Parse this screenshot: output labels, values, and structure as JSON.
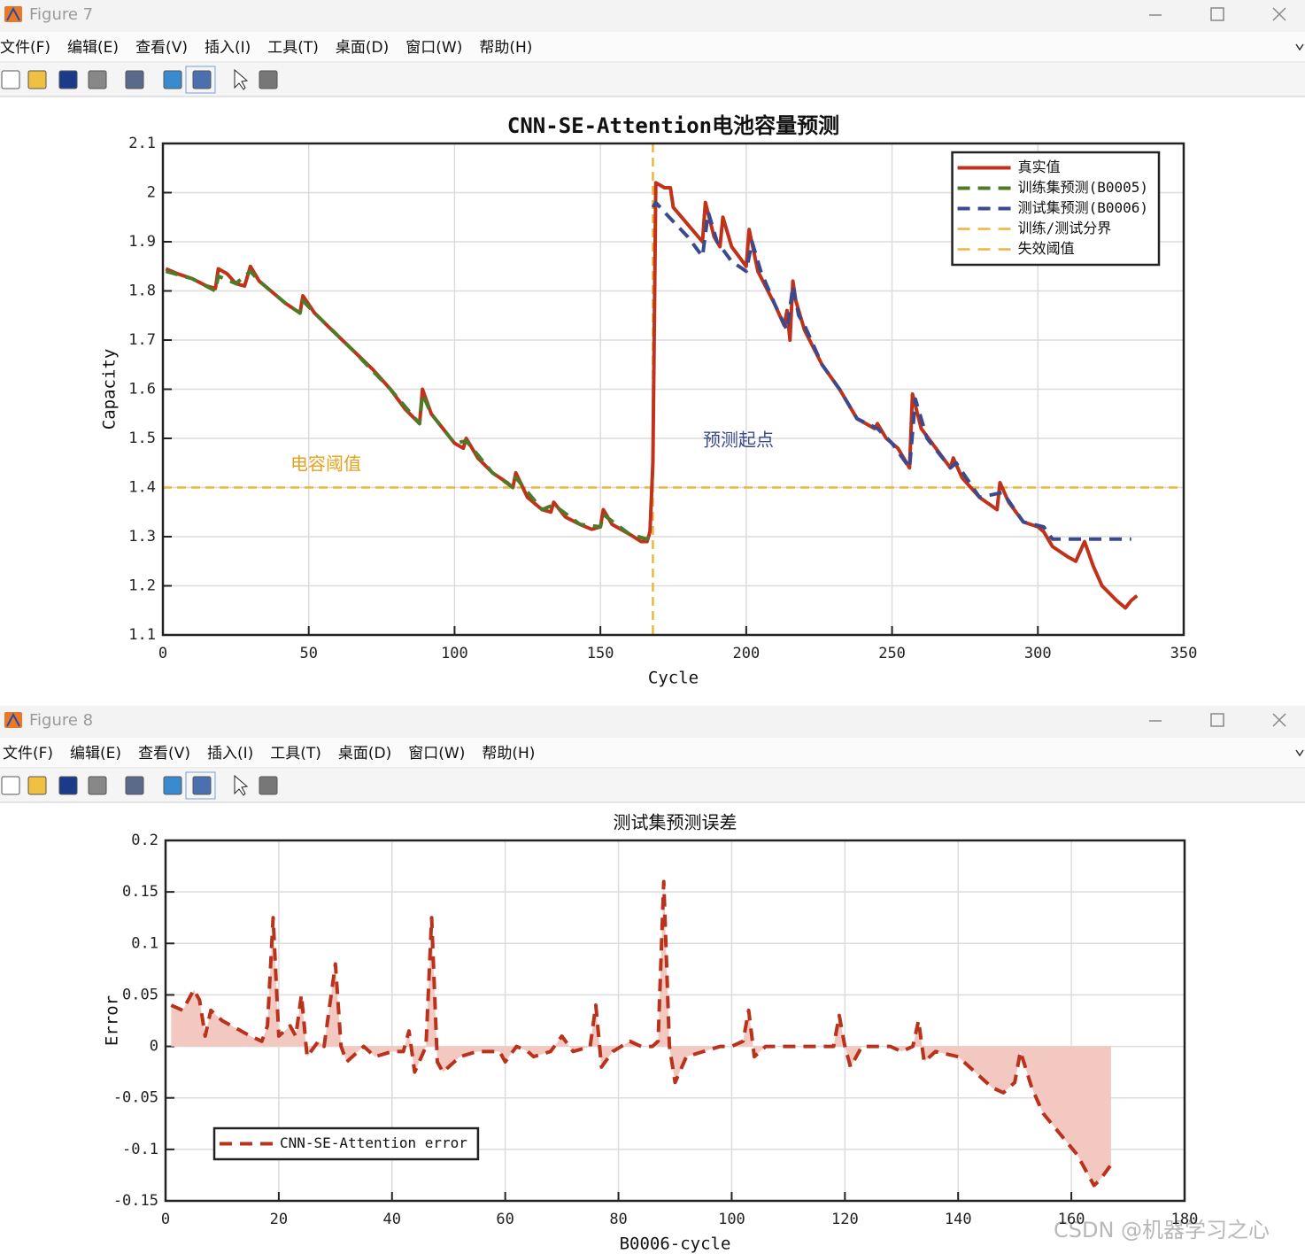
{
  "windows": [
    {
      "title": "Figure 7",
      "menu": [
        "文件(F)",
        "编辑(E)",
        "查看(V)",
        "插入(I)",
        "工具(T)",
        "桌面(D)",
        "窗口(W)",
        "帮助(H)"
      ]
    },
    {
      "title": "Figure 8",
      "menu": [
        "文件(F)",
        "编辑(E)",
        "查看(V)",
        "插入(I)",
        "工具(T)",
        "桌面(D)",
        "窗口(W)",
        "帮助(H)"
      ]
    }
  ],
  "watermark": "CSDN @机器学习之心",
  "chart_data": [
    {
      "type": "line",
      "title": "CNN-SE-Attention电池容量预测",
      "xlabel": "Cycle",
      "ylabel": "Capacity",
      "xlim": [
        0,
        350
      ],
      "xticks": [
        0,
        50,
        100,
        150,
        200,
        250,
        300,
        350
      ],
      "ylim": [
        1.1,
        2.1
      ],
      "yticks": [
        1.1,
        1.2,
        1.3,
        1.4,
        1.5,
        1.6,
        1.7,
        1.8,
        1.9,
        2,
        2.1
      ],
      "grid": true,
      "legend": "upper right",
      "series": [
        {
          "name": "真实值",
          "color": "#c0321a",
          "dash": false,
          "x": [
            1,
            5,
            10,
            15,
            18,
            19,
            22,
            25,
            28,
            30,
            33,
            38,
            42,
            47,
            48,
            52,
            58,
            65,
            72,
            78,
            83,
            88,
            89,
            92,
            96,
            100,
            103,
            104,
            108,
            113,
            118,
            120,
            121,
            125,
            130,
            133,
            134,
            138,
            143,
            147,
            150,
            151,
            154,
            160,
            164,
            166,
            167,
            168,
            169,
            172,
            174,
            175,
            180,
            185,
            186,
            189,
            191,
            192,
            195,
            200,
            201,
            204,
            210,
            213,
            214,
            215,
            216,
            217,
            220,
            226,
            232,
            238,
            244,
            245,
            248,
            252,
            256,
            257,
            260,
            265,
            270,
            271,
            274,
            280,
            286,
            287,
            290,
            295,
            300,
            302,
            305,
            310,
            313,
            316,
            319,
            322,
            327,
            330,
            332,
            334
          ],
          "values": [
            1.845,
            1.835,
            1.825,
            1.81,
            1.805,
            1.845,
            1.835,
            1.815,
            1.81,
            1.85,
            1.82,
            1.795,
            1.775,
            1.755,
            1.79,
            1.755,
            1.72,
            1.68,
            1.64,
            1.6,
            1.56,
            1.53,
            1.6,
            1.55,
            1.52,
            1.49,
            1.48,
            1.5,
            1.46,
            1.43,
            1.41,
            1.4,
            1.43,
            1.38,
            1.355,
            1.35,
            1.37,
            1.34,
            1.325,
            1.315,
            1.32,
            1.355,
            1.325,
            1.305,
            1.29,
            1.29,
            1.31,
            1.45,
            2.02,
            2.01,
            2.01,
            1.97,
            1.935,
            1.9,
            1.98,
            1.91,
            1.89,
            1.95,
            1.89,
            1.85,
            1.925,
            1.84,
            1.77,
            1.73,
            1.76,
            1.7,
            1.82,
            1.78,
            1.72,
            1.65,
            1.6,
            1.54,
            1.52,
            1.53,
            1.5,
            1.48,
            1.44,
            1.59,
            1.52,
            1.48,
            1.44,
            1.46,
            1.42,
            1.38,
            1.355,
            1.41,
            1.37,
            1.33,
            1.32,
            1.31,
            1.28,
            1.26,
            1.25,
            1.29,
            1.24,
            1.2,
            1.17,
            1.155,
            1.17,
            1.18
          ]
        },
        {
          "name": "训练集预测(B0005)",
          "color": "#4f7a28",
          "dash": true,
          "x": [
            1,
            10,
            18,
            19,
            25,
            30,
            33,
            42,
            47,
            48,
            52,
            65,
            78,
            88,
            89,
            92,
            100,
            104,
            113,
            120,
            121,
            130,
            134,
            143,
            150,
            151,
            160,
            166,
            168
          ],
          "values": [
            1.84,
            1.825,
            1.8,
            1.83,
            1.815,
            1.84,
            1.82,
            1.775,
            1.755,
            1.78,
            1.755,
            1.68,
            1.6,
            1.53,
            1.59,
            1.55,
            1.49,
            1.495,
            1.43,
            1.4,
            1.42,
            1.355,
            1.365,
            1.325,
            1.32,
            1.345,
            1.305,
            1.295,
            1.31
          ]
        },
        {
          "name": "测试集预测(B0006)",
          "color": "#3b4a8e",
          "dash": true,
          "x": [
            168,
            169,
            172,
            180,
            185,
            187,
            190,
            195,
            200,
            202,
            205,
            210,
            214,
            216,
            218,
            220,
            226,
            232,
            238,
            245,
            250,
            256,
            258,
            262,
            270,
            272,
            280,
            288,
            295,
            302,
            305,
            332
          ],
          "values": [
            1.97,
            1.98,
            1.96,
            1.91,
            1.87,
            1.96,
            1.9,
            1.86,
            1.84,
            1.9,
            1.84,
            1.77,
            1.72,
            1.81,
            1.75,
            1.73,
            1.65,
            1.6,
            1.54,
            1.52,
            1.49,
            1.44,
            1.58,
            1.5,
            1.44,
            1.45,
            1.38,
            1.39,
            1.33,
            1.32,
            1.295,
            1.295
          ]
        }
      ],
      "reference_lines": [
        {
          "name": "训练/测试分界",
          "color": "#f0b43c",
          "axis": "x",
          "value": 168
        },
        {
          "name": "失效阈值",
          "color": "#f0b43c",
          "axis": "y",
          "value": 1.4
        }
      ],
      "annotations": [
        {
          "text": "电容阈值",
          "color": "#e8a020"
        },
        {
          "text": "预测起点",
          "color": "#3b4a8e"
        }
      ]
    },
    {
      "type": "line",
      "title": "测试集预测误差",
      "xlabel": "B0006-cycle",
      "ylabel": "Error",
      "xlim": [
        0,
        180
      ],
      "xticks": [
        0,
        20,
        40,
        60,
        80,
        100,
        120,
        140,
        160,
        180
      ],
      "ylim": [
        -0.15,
        0.2
      ],
      "yticks": [
        -0.15,
        -0.1,
        -0.05,
        0,
        0.05,
        0.1,
        0.15,
        0.2
      ],
      "grid": true,
      "legend": "lower left",
      "series": [
        {
          "name": "CNN-SE-Attention error",
          "color": "#b8321c",
          "dash": true,
          "fill": "#f2c8c0",
          "x": [
            1,
            3,
            5,
            6,
            7,
            8,
            10,
            15,
            17,
            18,
            19,
            20,
            22,
            23,
            24,
            25,
            27,
            28,
            30,
            31,
            32,
            34,
            35,
            37,
            40,
            42,
            43,
            44,
            46,
            47,
            48,
            49,
            52,
            55,
            59,
            60,
            62,
            64,
            65,
            68,
            70,
            72,
            75,
            76,
            77,
            79,
            82,
            84,
            86,
            87,
            88,
            89,
            90,
            92,
            95,
            98,
            100,
            102,
            103,
            104,
            106,
            110,
            112,
            115,
            118,
            119,
            120,
            121,
            123,
            128,
            130,
            132,
            133,
            134,
            136,
            140,
            143,
            146,
            148,
            150,
            151,
            153,
            155,
            158,
            161,
            163,
            164,
            165,
            167
          ],
          "values": [
            0.04,
            0.035,
            0.055,
            0.045,
            0.01,
            0.035,
            0.025,
            0.01,
            0.005,
            0.02,
            0.125,
            0.01,
            0.02,
            0.01,
            0.05,
            -0.01,
            0.005,
            0,
            0.08,
            0,
            -0.015,
            -0.005,
            0,
            -0.01,
            -0.005,
            -0.005,
            0.015,
            -0.025,
            0,
            0.125,
            -0.015,
            -0.025,
            -0.01,
            -0.005,
            -0.005,
            -0.015,
            0,
            -0.005,
            -0.01,
            -0.005,
            0.01,
            -0.005,
            0,
            0.04,
            -0.02,
            -0.005,
            0.005,
            0,
            0,
            0.005,
            0.16,
            0,
            -0.035,
            -0.01,
            -0.005,
            0,
            0,
            0.005,
            0.035,
            -0.01,
            0,
            0,
            0,
            0,
            0,
            0.03,
            0,
            -0.02,
            0,
            0,
            -0.005,
            0,
            0.025,
            -0.015,
            -0.005,
            -0.01,
            -0.025,
            -0.04,
            -0.045,
            -0.035,
            -0.005,
            -0.04,
            -0.065,
            -0.085,
            -0.105,
            -0.125,
            -0.135,
            -0.13,
            -0.115
          ]
        }
      ]
    }
  ]
}
